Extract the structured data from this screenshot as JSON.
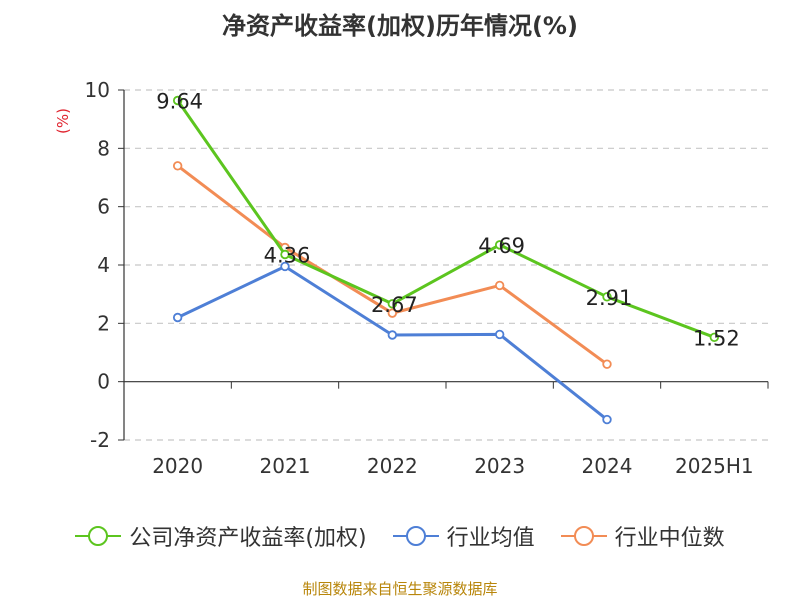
{
  "title": "净资产收益率(加权)历年情况(%)",
  "source": "制图数据来自恒生聚源数据库",
  "chart_data": {
    "type": "line",
    "title": "净资产收益率(加权)历年情况(%)",
    "ylabel": "(%)",
    "categories": [
      "2020",
      "2021",
      "2022",
      "2023",
      "2024",
      "2025H1"
    ],
    "ylim": [
      -2,
      10
    ],
    "yticks": [
      -2,
      0,
      2,
      4,
      6,
      8,
      10
    ],
    "grid": true,
    "legend": "bottom",
    "series": [
      {
        "name": "公司净资产收益率(加权)",
        "color": "#5cc51f",
        "values": [
          9.64,
          4.36,
          2.67,
          4.69,
          2.91,
          1.52
        ],
        "show_labels": true
      },
      {
        "name": "行业均值",
        "color": "#4e7fd6",
        "values": [
          2.2,
          3.95,
          1.6,
          1.62,
          -1.3,
          null
        ],
        "show_labels": false
      },
      {
        "name": "行业中位数",
        "color": "#f28c55",
        "values": [
          7.4,
          4.6,
          2.35,
          3.3,
          0.6,
          null
        ],
        "show_labels": false
      }
    ],
    "data_labels": [
      "9.64",
      "4.36",
      "2.67",
      "4.69",
      "2.91",
      "1.52"
    ]
  }
}
